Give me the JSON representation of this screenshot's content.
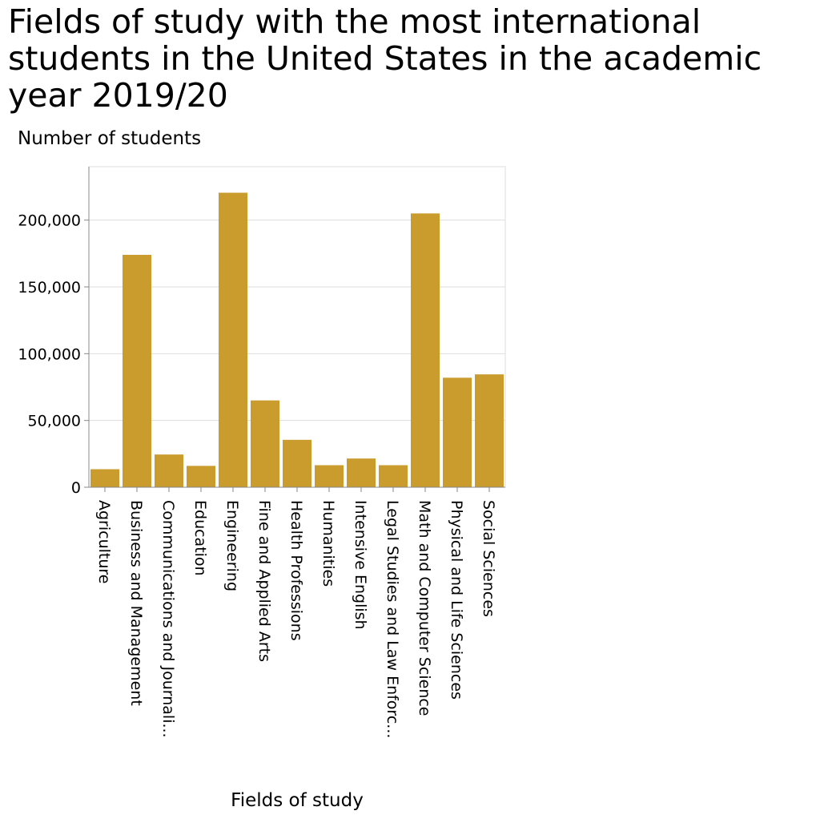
{
  "chart_data": {
    "type": "bar",
    "title": "Fields of study with the most international students in the United States in the academic year 2019/20",
    "xlabel": "Fields of study",
    "ylabel": "Number of students",
    "categories": [
      "Agriculture",
      "Business and Management",
      "Communications and Journali...",
      "Education",
      "Engineering",
      "Fine and Applied Arts",
      "Health Professions",
      "Humanities",
      "Intensive English",
      "Legal Studies and Law Enforc...",
      "Math and Computer Science",
      "Physical and Life Sciences",
      "Social Sciences"
    ],
    "values": [
      13500,
      174000,
      24500,
      16000,
      220500,
      65000,
      35500,
      16500,
      21500,
      16500,
      205000,
      82000,
      84500
    ],
    "ylim": [
      0,
      240000
    ],
    "yticks": [
      0,
      50000,
      100000,
      150000,
      200000
    ],
    "ytick_labels": [
      "0",
      "50,000",
      "100,000",
      "150,000",
      "200,000"
    ],
    "grid": true,
    "bar_color": "#c99c2d",
    "grid_color": "#dddddd",
    "axis_color": "#888888"
  }
}
